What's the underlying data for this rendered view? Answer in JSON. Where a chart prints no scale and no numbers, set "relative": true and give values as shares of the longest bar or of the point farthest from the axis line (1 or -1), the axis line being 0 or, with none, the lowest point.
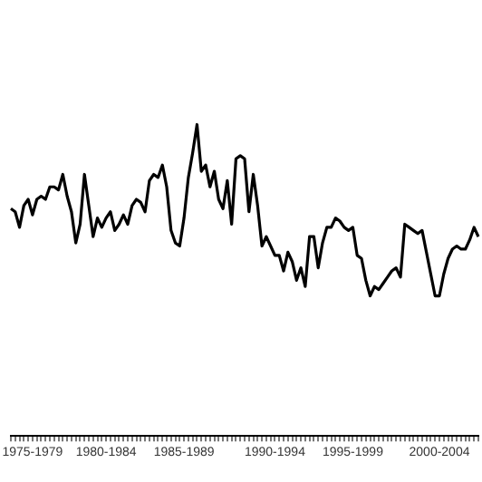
{
  "chart_data": {
    "type": "line",
    "relative": true,
    "color": "#000000",
    "grid": false,
    "legend": false,
    "marker": "none",
    "line_style": "solid",
    "categories": [
      null,
      null,
      null,
      null,
      null,
      "1975-1979",
      null,
      null,
      null,
      null,
      null,
      null,
      null,
      null,
      null,
      null,
      null,
      null,
      null,
      null,
      null,
      null,
      "1980-1984",
      null,
      null,
      null,
      null,
      null,
      null,
      null,
      null,
      null,
      null,
      null,
      null,
      null,
      null,
      null,
      null,
      null,
      "1985-1989",
      null,
      null,
      null,
      null,
      null,
      null,
      null,
      null,
      null,
      null,
      null,
      null,
      null,
      null,
      null,
      null,
      null,
      null,
      null,
      null,
      "1990-1994",
      null,
      null,
      null,
      null,
      null,
      null,
      null,
      null,
      null,
      null,
      null,
      null,
      null,
      null,
      null,
      null,
      null,
      "1995-1999",
      null,
      null,
      null,
      null,
      null,
      null,
      null,
      null,
      null,
      null,
      null,
      null,
      null,
      null,
      null,
      null,
      null,
      null,
      null,
      "2000-2004",
      null,
      null,
      null,
      null,
      null,
      null,
      null,
      null,
      null
    ],
    "values": [
      0.73,
      0.72,
      0.67,
      0.74,
      0.76,
      0.71,
      0.76,
      0.77,
      0.76,
      0.8,
      0.8,
      0.79,
      0.84,
      0.77,
      0.72,
      0.62,
      0.68,
      0.84,
      0.74,
      0.64,
      0.7,
      0.67,
      0.7,
      0.72,
      0.66,
      0.68,
      0.71,
      0.68,
      0.74,
      0.76,
      0.75,
      0.72,
      0.82,
      0.84,
      0.83,
      0.87,
      0.8,
      0.66,
      0.62,
      0.61,
      0.7,
      0.83,
      0.91,
      1.0,
      0.85,
      0.87,
      0.8,
      0.85,
      0.76,
      0.73,
      0.82,
      0.68,
      0.89,
      0.9,
      0.89,
      0.72,
      0.84,
      0.74,
      0.61,
      0.64,
      0.61,
      0.58,
      0.58,
      0.53,
      0.59,
      0.56,
      0.5,
      0.54,
      0.48,
      0.64,
      0.64,
      0.54,
      0.62,
      0.67,
      0.67,
      0.7,
      0.69,
      0.67,
      0.66,
      0.67,
      0.58,
      0.57,
      0.5,
      0.45,
      0.48,
      0.47,
      0.49,
      0.51,
      0.53,
      0.54,
      0.51,
      0.68,
      0.67,
      0.66,
      0.65,
      0.66,
      0.59,
      0.52,
      0.45,
      0.45,
      0.52,
      0.57,
      0.6,
      0.61,
      0.6,
      0.6,
      0.63,
      0.67,
      0.64
    ]
  }
}
